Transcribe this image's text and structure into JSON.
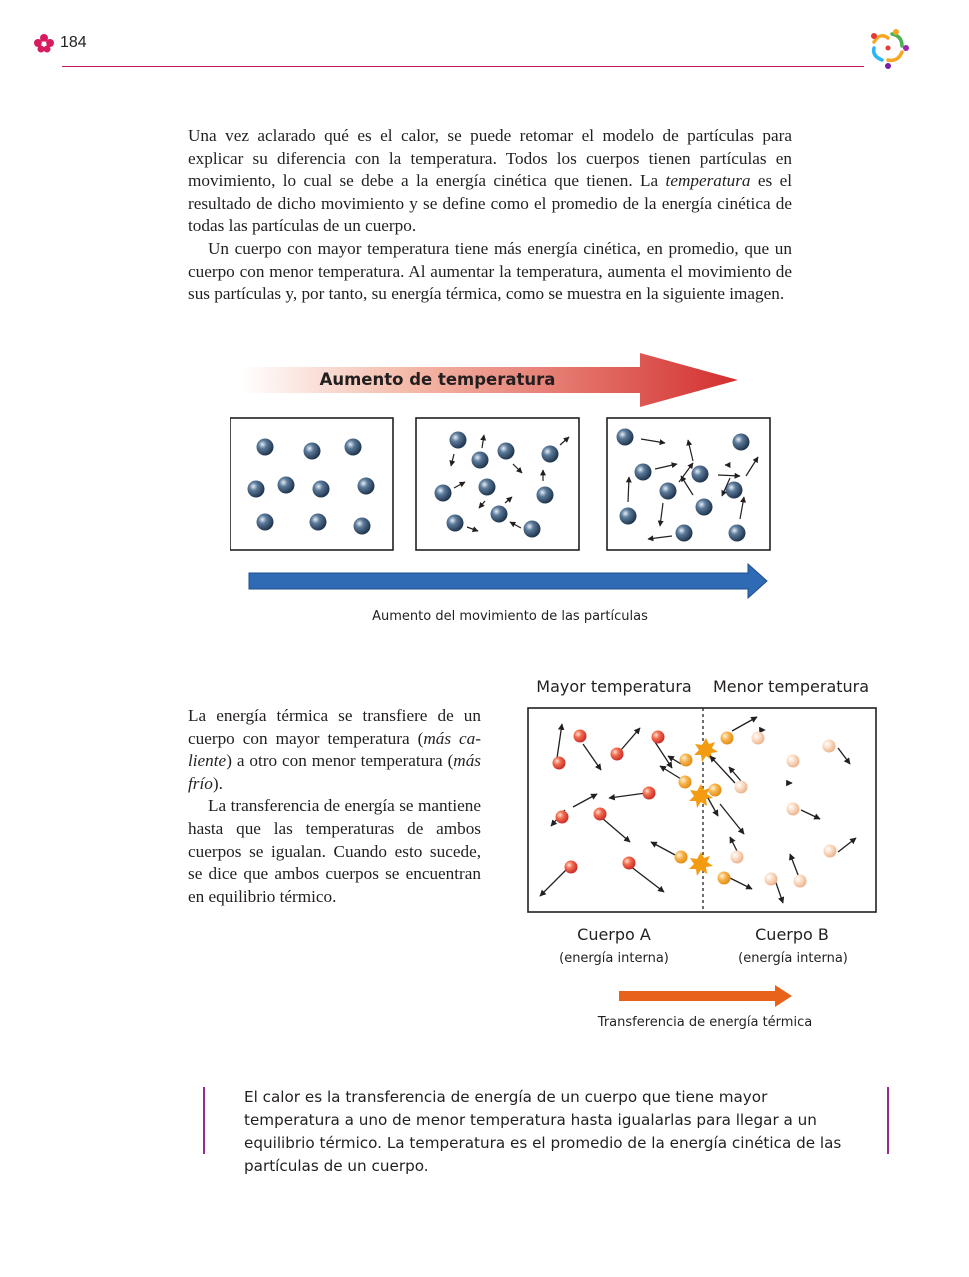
{
  "header": {
    "page_number": "184",
    "colors": {
      "rule": "#c2185b",
      "logo_pink": "#d81b60"
    }
  },
  "intro": {
    "p1_before": "Una vez aclarado qué es el calor, se puede retomar el modelo de partículas para explicar su diferencia con la temperatura. Todos los cuerpos tienen partículas en movimiento, lo cual se debe a la energía cinética que tienen. La ",
    "p1_em": "temperatura",
    "p1_after": " es el resultado de dicho movimiento y se define como el promedio de la energía cinética de todas las partículas de un cuerpo.",
    "p2": "Un cuerpo con mayor temperatura tiene más energía cinética, en promedio, que un cuerpo con menor temperatura. Al aumentar la temperatura, aumenta el movimiento de sus partículas y, por tanto, su energía térmica, como se muestra en la siguiente imagen."
  },
  "figure1": {
    "arrow_label": "Aumento de temperatura",
    "caption": "Aumento del movimiento de las partículas",
    "colors": {
      "temp_arrow_start": "#fbe3da",
      "temp_arrow_end": "#d32f2f",
      "particle": "#2e4a6b",
      "motion_arrow": "#2f6bb5"
    }
  },
  "side_text": {
    "p1_a": "La energía térmica se transfiere de un cuerpo con mayor temperatura (",
    "p1_em1": "más ca-liente",
    "p1_b": ") a otro con menor temperatura (",
    "p1_em2": "más frío",
    "p1_c": ").",
    "p2": "La transferencia de energía se mantiene hasta que las temperaturas de ambos cuerpos se igualan. Cuando esto sucede, se dice que ambos cuerpos se encuentran en equilibrio térmico."
  },
  "figure2": {
    "left_title": "Mayor temperatura",
    "right_title": "Menor temperatura",
    "body_a": "Cuerpo A",
    "body_a_sub": "(energía interna)",
    "body_b": "Cuerpo B",
    "body_b_sub": "(energía interna)",
    "caption": "Transferencia de energía térmica",
    "colors": {
      "hot": "#e53935",
      "mid": "#f5a623",
      "cold": "#f8c9a8",
      "transfer_arrow": "#e8621a"
    }
  },
  "summary": {
    "text": "El calor es la transferencia de energía de un cuerpo que tiene mayor temperatura a uno de menor temperatura hasta igualarlas para llegar a un equilibrio térmico. La temperatura es el promedio de la energía cinética de las partículas de un cuerpo.",
    "bar_color": "#9c2a8c"
  }
}
